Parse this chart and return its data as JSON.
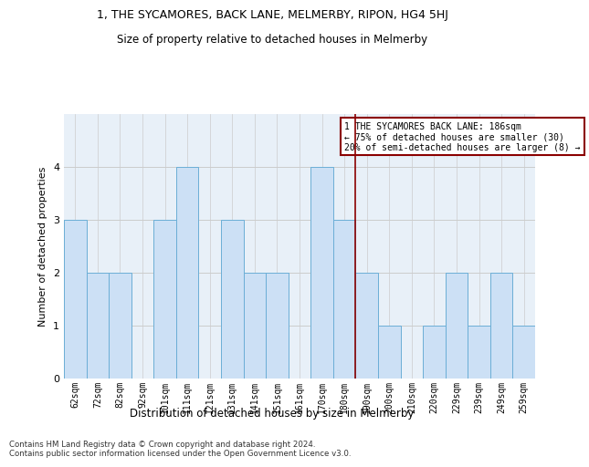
{
  "title": "1, THE SYCAMORES, BACK LANE, MELMERBY, RIPON, HG4 5HJ",
  "subtitle": "Size of property relative to detached houses in Melmerby",
  "xlabel": "Distribution of detached houses by size in Melmerby",
  "ylabel": "Number of detached properties",
  "bar_labels": [
    "62sqm",
    "72sqm",
    "82sqm",
    "92sqm",
    "101sqm",
    "111sqm",
    "121sqm",
    "131sqm",
    "141sqm",
    "151sqm",
    "161sqm",
    "170sqm",
    "180sqm",
    "190sqm",
    "200sqm",
    "210sqm",
    "220sqm",
    "229sqm",
    "239sqm",
    "249sqm",
    "259sqm"
  ],
  "bar_values": [
    3,
    2,
    2,
    0,
    3,
    4,
    0,
    3,
    2,
    2,
    0,
    4,
    3,
    2,
    1,
    0,
    1,
    2,
    1,
    2,
    1
  ],
  "bar_color": "#cce0f5",
  "bar_edge_color": "#6baed6",
  "vline_after_index": 12,
  "vline_color": "#8b0000",
  "annotation_text": "1 THE SYCAMORES BACK LANE: 186sqm\n← 75% of detached houses are smaller (30)\n20% of semi-detached houses are larger (8) →",
  "annotation_box_color": "#ffffff",
  "annotation_box_edge": "#8b0000",
  "ylim": [
    0,
    5
  ],
  "yticks": [
    0,
    1,
    2,
    3,
    4
  ],
  "footnote": "Contains HM Land Registry data © Crown copyright and database right 2024.\nContains public sector information licensed under the Open Government Licence v3.0.",
  "grid_color": "#cccccc",
  "bg_color": "#e8f0f8"
}
